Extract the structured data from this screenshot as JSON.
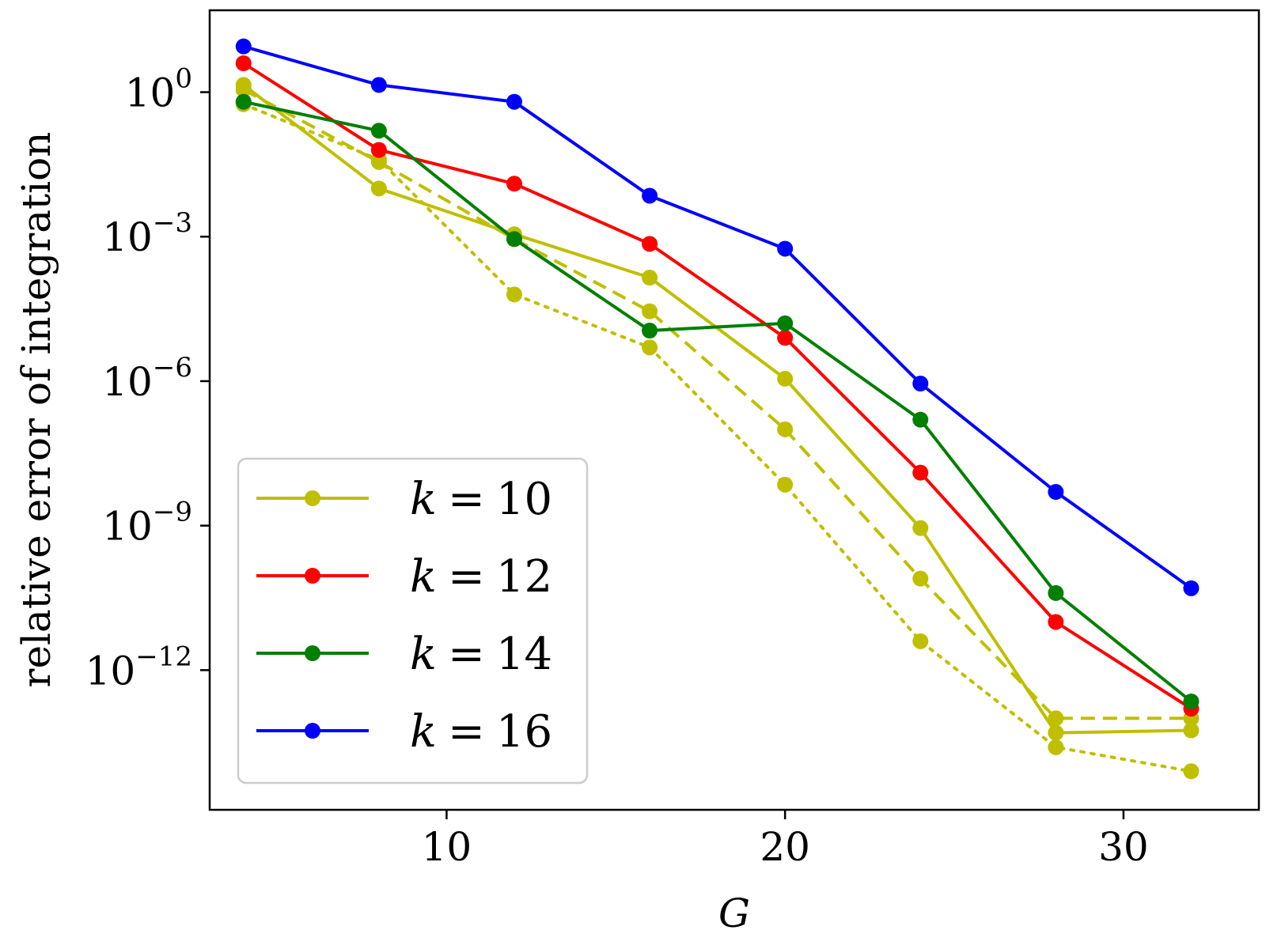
{
  "chart_data": {
    "type": "line",
    "xlabel": "G",
    "ylabel": "relative error of integration",
    "yscale": "log",
    "xlim": [
      3,
      34
    ],
    "ylim_log10": [
      -14.9,
      1.7
    ],
    "xticks": [
      10,
      20,
      30
    ],
    "yticks": [
      {
        "base": "10",
        "exp": "0",
        "log10": 0
      },
      {
        "base": "10",
        "exp": "−3",
        "log10": -3
      },
      {
        "base": "10",
        "exp": "−6",
        "log10": -6
      },
      {
        "base": "10",
        "exp": "−9",
        "log10": -9
      },
      {
        "base": "10",
        "exp": "−12",
        "log10": -12
      }
    ],
    "x": [
      4,
      8,
      12,
      16,
      20,
      24,
      28,
      32
    ],
    "series": [
      {
        "name": "k = 10",
        "legend_var": "k",
        "legend_value": "10",
        "color": "#bfbf00",
        "style": "solid",
        "log10_values": [
          0.15,
          -2.0,
          -2.95,
          -3.85,
          -5.95,
          -9.05,
          -13.3,
          -13.25
        ]
      },
      {
        "name": "k = 10 (dashed)",
        "color": "#bfbf00",
        "style": "dashed",
        "log10_values": [
          0.05,
          -1.45,
          -3.05,
          -4.55,
          -7.0,
          -10.1,
          -13.0,
          -13.0
        ]
      },
      {
        "name": "k = 10 (dotted)",
        "color": "#bfbf00",
        "style": "dotted",
        "log10_values": [
          -0.25,
          -1.4,
          -4.2,
          -5.3,
          -8.15,
          -11.4,
          -13.6,
          -14.1
        ]
      },
      {
        "name": "k = 12",
        "legend_var": "k",
        "legend_value": "12",
        "color": "#ff0000",
        "style": "solid",
        "log10_values": [
          0.6,
          -1.2,
          -1.9,
          -3.15,
          -5.1,
          -7.9,
          -11.0,
          -12.8
        ]
      },
      {
        "name": "k = 14",
        "legend_var": "k",
        "legend_value": "14",
        "color": "#007f00",
        "style": "solid",
        "log10_values": [
          -0.2,
          -0.8,
          -3.05,
          -4.95,
          -4.8,
          -6.8,
          -10.4,
          -12.65
        ]
      },
      {
        "name": "k = 16",
        "legend_var": "k",
        "legend_value": "16",
        "color": "#0000ff",
        "style": "solid",
        "log10_values": [
          0.95,
          0.15,
          -0.2,
          -2.15,
          -3.25,
          -6.05,
          -8.3,
          -10.3
        ]
      }
    ],
    "legend_position": "lower-left",
    "grid": false
  }
}
